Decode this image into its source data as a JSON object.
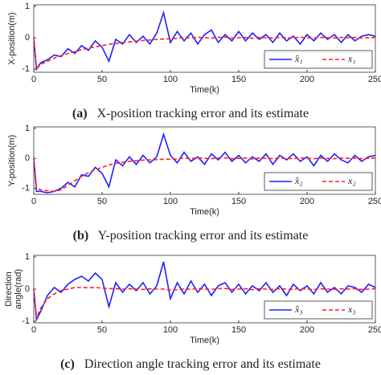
{
  "chart_data": [
    {
      "type": "line",
      "xlabel": "Time(k)",
      "ylabel": [
        "X-position(m)"
      ],
      "caption_label": "(a)",
      "caption": "X-position tracking error and its estimate",
      "xlim": [
        0,
        250
      ],
      "xticks": [
        0,
        50,
        100,
        150,
        200,
        250
      ],
      "ylim": [
        -1.1,
        1.05
      ],
      "yticks": [
        -1,
        0,
        1
      ],
      "legend": "lower right",
      "x": [
        0,
        2,
        5,
        10,
        15,
        20,
        25,
        30,
        35,
        40,
        45,
        50,
        55,
        60,
        65,
        70,
        75,
        80,
        85,
        90,
        95,
        100,
        105,
        110,
        115,
        120,
        125,
        130,
        135,
        140,
        145,
        150,
        155,
        160,
        165,
        170,
        175,
        180,
        185,
        190,
        195,
        200,
        205,
        210,
        215,
        220,
        225,
        230,
        235,
        240,
        245,
        250
      ],
      "series": [
        {
          "name": "x̂₁",
          "color": "#1f1fff",
          "dash": false,
          "values": [
            0,
            -1.0,
            -0.8,
            -0.7,
            -0.55,
            -0.6,
            -0.35,
            -0.5,
            -0.25,
            -0.4,
            -0.1,
            -0.3,
            -0.75,
            -0.05,
            -0.2,
            0.1,
            -0.15,
            0.05,
            -0.2,
            0.15,
            0.8,
            -0.15,
            0.2,
            -0.1,
            0.15,
            -0.2,
            0.1,
            0.25,
            -0.15,
            0.1,
            -0.1,
            0.2,
            -0.1,
            0.15,
            -0.05,
            0.1,
            -0.15,
            0.15,
            -0.1,
            0.05,
            -0.2,
            0.1,
            -0.1,
            0.15,
            -0.05,
            0.1,
            -0.15,
            0.1,
            -0.1,
            0.05,
            0.1,
            0.05
          ]
        },
        {
          "name": "x₁",
          "color": "#ff2020",
          "dash": true,
          "values": [
            0,
            -1.0,
            -0.85,
            -0.75,
            -0.65,
            -0.57,
            -0.5,
            -0.44,
            -0.38,
            -0.33,
            -0.29,
            -0.25,
            -0.21,
            -0.18,
            -0.15,
            -0.13,
            -0.11,
            -0.09,
            -0.07,
            -0.05,
            -0.04,
            -0.03,
            -0.02,
            0.01,
            -0.01,
            0.02,
            0,
            -0.01,
            0.01,
            0.02,
            -0.01,
            0,
            0.01,
            -0.02,
            0.01,
            0,
            -0.01,
            0.01,
            0,
            -0.01,
            0.02,
            0,
            -0.01,
            0.01,
            0,
            -0.01,
            0.01,
            0,
            0.01,
            -0.01,
            0,
            0.01
          ]
        }
      ]
    },
    {
      "type": "line",
      "xlabel": "Time(k)",
      "ylabel": [
        "Y-position(m)"
      ],
      "caption_label": "(b)",
      "caption": "Y-position tracking error and its estimate",
      "xlim": [
        0,
        250
      ],
      "xticks": [
        0,
        50,
        100,
        150,
        200,
        250
      ],
      "ylim": [
        -1.2,
        1.05
      ],
      "yticks": [
        -1,
        0,
        1
      ],
      "legend": "lower right",
      "x": [
        0,
        2,
        5,
        10,
        15,
        20,
        25,
        30,
        35,
        40,
        45,
        50,
        55,
        60,
        65,
        70,
        75,
        80,
        85,
        90,
        95,
        100,
        105,
        110,
        115,
        120,
        125,
        130,
        135,
        140,
        145,
        150,
        155,
        160,
        165,
        170,
        175,
        180,
        185,
        190,
        195,
        200,
        205,
        210,
        215,
        220,
        225,
        230,
        235,
        240,
        245,
        250
      ],
      "series": [
        {
          "name": "x̂₂",
          "color": "#1f1fff",
          "dash": false,
          "values": [
            0,
            -1.1,
            -1.1,
            -1.15,
            -1.1,
            -1.0,
            -0.8,
            -0.95,
            -0.55,
            -0.6,
            -0.3,
            -0.5,
            -0.95,
            -0.05,
            -0.25,
            0.05,
            -0.2,
            0.1,
            -0.15,
            0.05,
            0.8,
            0.1,
            -0.15,
            0.2,
            -0.1,
            0.05,
            -0.2,
            0.15,
            -0.05,
            0.2,
            -0.1,
            0.1,
            -0.15,
            0.05,
            -0.1,
            0.15,
            -0.2,
            0.1,
            -0.05,
            0.15,
            -0.1,
            0.05,
            -0.25,
            0.1,
            -0.1,
            0.15,
            -0.05,
            -0.15,
            0.1,
            -0.1,
            0.05,
            0.1
          ]
        },
        {
          "name": "x₂",
          "color": "#ff2020",
          "dash": true,
          "values": [
            0,
            -1.0,
            -1.05,
            -1.08,
            -1.1,
            -1.05,
            -0.9,
            -0.75,
            -0.6,
            -0.48,
            -0.38,
            -0.3,
            -0.22,
            -0.17,
            -0.13,
            -0.1,
            -0.08,
            -0.06,
            -0.05,
            -0.04,
            -0.03,
            -0.03,
            -0.02,
            0.01,
            -0.01,
            0.02,
            0,
            -0.01,
            0.01,
            0.02,
            -0.01,
            0,
            0.01,
            -0.02,
            0.01,
            0,
            -0.01,
            0.01,
            0,
            -0.01,
            0.02,
            0,
            -0.01,
            0.01,
            0,
            -0.01,
            0.01,
            0,
            0.01,
            -0.01,
            0,
            0.01
          ]
        }
      ]
    },
    {
      "type": "line",
      "xlabel": "Time(k)",
      "ylabel": [
        "Direction",
        "angle(rad)"
      ],
      "caption_label": "(c)",
      "caption": "Direction angle tracking error and its estimate",
      "xlim": [
        0,
        250
      ],
      "xticks": [
        0,
        50,
        100,
        150,
        200,
        250
      ],
      "ylim": [
        -1.05,
        1.05
      ],
      "yticks": [
        -1,
        0,
        1
      ],
      "legend": "lower right",
      "x": [
        0,
        2,
        5,
        10,
        15,
        20,
        25,
        30,
        35,
        40,
        45,
        50,
        55,
        60,
        65,
        70,
        75,
        80,
        85,
        90,
        95,
        100,
        105,
        110,
        115,
        120,
        125,
        130,
        135,
        140,
        145,
        150,
        155,
        160,
        165,
        170,
        175,
        180,
        185,
        190,
        195,
        200,
        205,
        210,
        215,
        220,
        225,
        230,
        235,
        240,
        245,
        250
      ],
      "series": [
        {
          "name": "x̂₃",
          "color": "#1f1fff",
          "dash": false,
          "values": [
            0,
            -0.95,
            -0.7,
            -0.2,
            0.05,
            -0.1,
            0.15,
            0.3,
            0.4,
            0.25,
            0.5,
            0.3,
            -0.55,
            0.2,
            -0.1,
            0.15,
            -0.05,
            0.2,
            -0.15,
            0.1,
            0.85,
            -0.3,
            0.2,
            -0.15,
            0.25,
            -0.1,
            0.15,
            -0.2,
            0.1,
            0.2,
            -0.1,
            0.15,
            -0.15,
            0.1,
            -0.05,
            0.2,
            -0.1,
            0.1,
            -0.2,
            0.15,
            -0.05,
            0.1,
            -0.15,
            0.2,
            -0.1,
            0.05,
            -0.15,
            0.1,
            0.05,
            -0.1,
            0.15,
            0.05
          ]
        },
        {
          "name": "x₃",
          "color": "#ff2020",
          "dash": true,
          "values": [
            0,
            -0.9,
            -0.6,
            -0.3,
            -0.15,
            -0.05,
            0,
            0.05,
            0.05,
            0.04,
            0.05,
            0.03,
            0.02,
            0.01,
            0,
            0.01,
            0,
            -0.01,
            0.01,
            0,
            0,
            -0.03,
            -0.02,
            0.01,
            -0.01,
            0.02,
            0,
            -0.01,
            0.01,
            0.02,
            -0.01,
            0,
            0.01,
            -0.02,
            0.01,
            0,
            -0.01,
            0.01,
            0,
            -0.01,
            0.02,
            0,
            -0.01,
            0.01,
            0,
            -0.01,
            0.01,
            0,
            0.01,
            -0.01,
            0,
            0.01
          ]
        }
      ]
    }
  ]
}
